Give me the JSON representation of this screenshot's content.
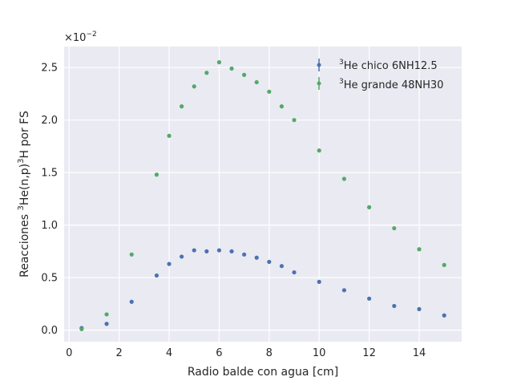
{
  "chart_data": {
    "type": "scatter",
    "xlabel": "Radio balde con agua [cm]",
    "ylabel_parts": [
      "Reacciones ",
      "3",
      "He(n,p)",
      "3",
      "H por FS"
    ],
    "ylabel": "Reacciones 3He(n,p)3H por FS",
    "offset_text_base": "×10",
    "offset_text_exp": "−2",
    "xlim": [
      -0.2,
      15.7
    ],
    "ylim": [
      -0.11,
      2.7
    ],
    "x_ticks": [
      0,
      2,
      4,
      6,
      8,
      10,
      12,
      14
    ],
    "x_tick_labels": [
      "0",
      "2",
      "4",
      "6",
      "8",
      "10",
      "12",
      "14"
    ],
    "y_ticks": [
      0.0,
      0.5,
      1.0,
      1.5,
      2.0,
      2.5
    ],
    "y_tick_labels": [
      "0.0",
      "0.5",
      "1.0",
      "1.5",
      "2.0",
      "2.5"
    ],
    "grid": true,
    "legend_position": "top-right",
    "series": [
      {
        "name_sup": "3",
        "name_text": "He chico 6NH12.5",
        "color": "#4c72b0",
        "x": [
          0.5,
          1.5,
          2.5,
          3.5,
          4.0,
          4.5,
          5.0,
          5.5,
          6.0,
          6.5,
          7.0,
          7.5,
          8.0,
          8.5,
          9.0,
          10.0,
          11.0,
          12.0,
          13.0,
          14.0,
          15.0
        ],
        "y": [
          0.02,
          0.06,
          0.27,
          0.52,
          0.63,
          0.7,
          0.76,
          0.75,
          0.76,
          0.75,
          0.72,
          0.69,
          0.65,
          0.61,
          0.55,
          0.46,
          0.38,
          0.3,
          0.23,
          0.2,
          0.14
        ]
      },
      {
        "name_sup": "3",
        "name_text": "He grande 48NH30",
        "color": "#55a868",
        "x": [
          0.5,
          1.5,
          2.5,
          3.5,
          4.0,
          4.5,
          5.0,
          5.5,
          6.0,
          6.5,
          7.0,
          7.5,
          8.0,
          8.5,
          9.0,
          10.0,
          11.0,
          12.0,
          13.0,
          14.0,
          15.0
        ],
        "y": [
          0.01,
          0.15,
          0.72,
          1.48,
          1.85,
          2.13,
          2.32,
          2.45,
          2.55,
          2.49,
          2.43,
          2.36,
          2.27,
          2.13,
          2.0,
          1.71,
          1.44,
          1.17,
          0.97,
          0.77,
          0.62
        ]
      }
    ]
  }
}
